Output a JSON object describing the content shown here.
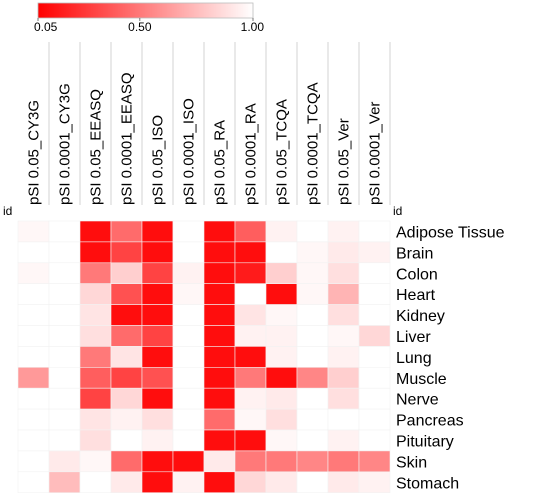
{
  "chart_data": {
    "type": "heatmap",
    "colorbar": {
      "tick_labels": [
        "0.05",
        "0.50",
        "1.00"
      ],
      "tick_values": [
        0.05,
        0.5,
        1.0
      ],
      "range": [
        0.05,
        1.0
      ],
      "low_color": "#ff0000",
      "high_color": "#ffffff"
    },
    "column_id_label": "id",
    "row_id_label": "id",
    "columns": [
      "pSI 0.05_CY3G",
      "pSI 0.0001_CY3G",
      "pSI 0.05_EEASQ",
      "pSI 0.0001_EEASQ",
      "pSI 0.05_ISO",
      "pSI 0.0001_ISO",
      "pSI 0.05_RA",
      "pSI 0.0001_RA",
      "pSI 0.05_TCQA",
      "pSI 0.0001_TCQA",
      "pSI 0.05_Ver",
      "pSI 0.0001_Ver"
    ],
    "rows": [
      "Adipose Tissue",
      "Brain",
      "Colon",
      "Heart",
      "Kidney",
      "Liver",
      "Lung",
      "Muscle",
      "Nerve",
      "Pancreas",
      "Pituitary",
      "Skin",
      "Stomach"
    ],
    "values": [
      [
        0.97,
        1.0,
        0.1,
        0.45,
        0.1,
        1.0,
        0.1,
        0.4,
        0.95,
        1.0,
        0.95,
        1.0
      ],
      [
        1.0,
        1.0,
        0.1,
        0.3,
        0.1,
        1.0,
        0.1,
        0.1,
        1.0,
        0.97,
        0.92,
        0.95
      ],
      [
        0.97,
        1.0,
        0.5,
        0.82,
        0.3,
        0.95,
        0.1,
        0.15,
        0.82,
        0.97,
        0.88,
        1.0
      ],
      [
        1.0,
        1.0,
        0.85,
        0.35,
        0.1,
        0.97,
        0.1,
        1.0,
        0.1,
        0.97,
        0.72,
        1.0
      ],
      [
        1.0,
        1.0,
        0.9,
        0.1,
        0.1,
        1.0,
        0.1,
        0.9,
        0.97,
        1.0,
        0.88,
        1.0
      ],
      [
        1.0,
        1.0,
        0.88,
        0.45,
        0.3,
        1.0,
        0.1,
        0.95,
        0.95,
        1.0,
        0.97,
        0.85
      ],
      [
        1.0,
        1.0,
        0.5,
        0.9,
        0.1,
        1.0,
        0.1,
        0.1,
        0.95,
        1.0,
        0.95,
        1.0
      ],
      [
        0.62,
        1.0,
        0.4,
        0.3,
        0.35,
        1.0,
        0.1,
        0.5,
        0.1,
        0.55,
        0.82,
        1.0
      ],
      [
        1.0,
        1.0,
        0.3,
        0.85,
        0.1,
        1.0,
        0.1,
        0.95,
        0.92,
        1.0,
        0.88,
        1.0
      ],
      [
        1.0,
        1.0,
        0.9,
        0.95,
        0.88,
        1.0,
        0.45,
        0.97,
        0.88,
        1.0,
        1.0,
        1.0
      ],
      [
        1.0,
        1.0,
        0.88,
        1.0,
        0.95,
        1.0,
        0.1,
        0.1,
        0.97,
        1.0,
        0.95,
        1.0
      ],
      [
        1.0,
        0.92,
        0.97,
        0.45,
        0.1,
        0.1,
        0.92,
        0.5,
        0.5,
        0.55,
        0.5,
        0.55
      ],
      [
        1.0,
        0.75,
        1.0,
        0.92,
        0.1,
        0.95,
        0.1,
        0.85,
        0.92,
        1.0,
        0.92,
        0.95
      ]
    ]
  }
}
